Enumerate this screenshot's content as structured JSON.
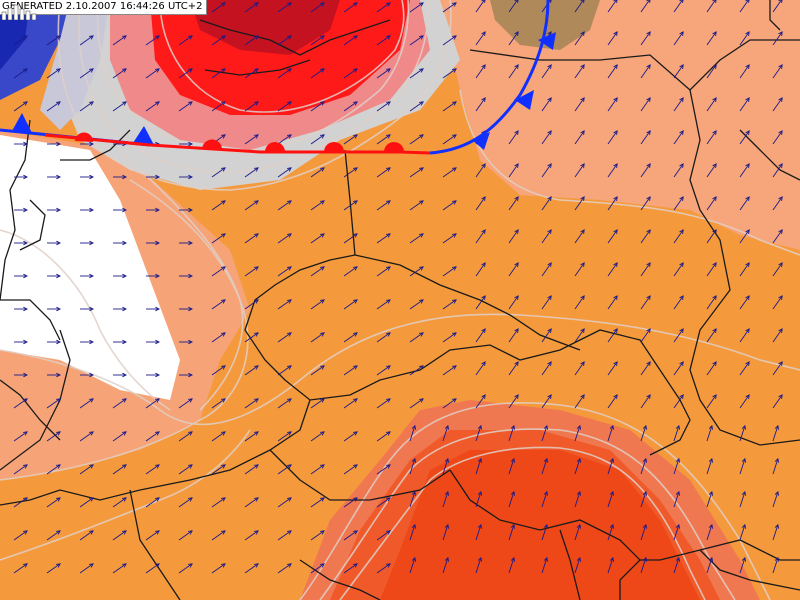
{
  "header": {
    "generated_label": "GENERATED 2.10.2007 16:44:26 UTC+2"
  },
  "map": {
    "wind_arrow_grid": true,
    "fronts": [
      "cold-front",
      "warm-front"
    ],
    "colors": {
      "white_zone": "#ffffff",
      "light_salmon": "#f5a47a",
      "orange": "#f59a3c",
      "deep_orange": "#f07028",
      "red_orange": "#ee4a14",
      "red": "#ff1a1a",
      "dark_red": "#c8101a",
      "grey": "#c8c8c8",
      "blue": "#2030c8",
      "brown": "#b08050",
      "cold_front": "#1030ff",
      "warm_front": "#ff1010",
      "border": "#1a1a1a",
      "arrow": "#1a1a8a"
    }
  },
  "legend": {
    "icon": "bars-legend-icon"
  }
}
